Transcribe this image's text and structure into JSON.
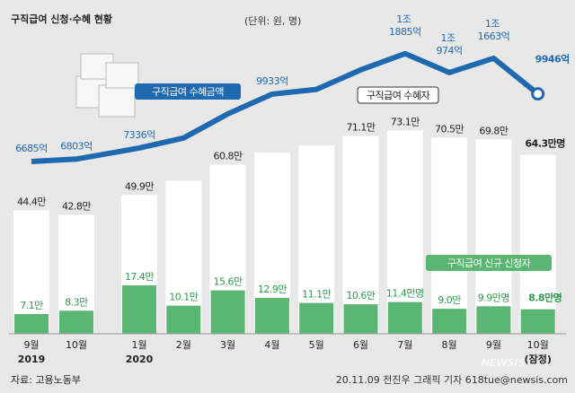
{
  "chart_data": {
    "type": "bar",
    "title": "구직급여 신청·수혜 현황",
    "subtitle": "(단위: 원, 명)",
    "categories": [
      "9월",
      "10월",
      "1월",
      "2월",
      "3월",
      "4월",
      "5월",
      "6월",
      "7월",
      "8월",
      "9월",
      "10월"
    ],
    "x_sublabels": [
      "2019",
      null,
      "2020",
      null,
      null,
      null,
      null,
      null,
      null,
      null,
      null,
      "(잠정)"
    ],
    "ylim": [
      0,
      80
    ],
    "y2lim": [
      5000,
      13000
    ],
    "series": [
      {
        "name": "구직급여 수혜자",
        "color": "#ffffff",
        "values": [
          44.4,
          42.8,
          49.9,
          55,
          60.8,
          65.1,
          67.8,
          71.1,
          73.1,
          70.5,
          69.8,
          64.3
        ],
        "value_labels": [
          "44.4만",
          "42.8만",
          "49.9만",
          null,
          "60.8만",
          null,
          null,
          "71.1만",
          "73.1만",
          "70.5만",
          "69.8만",
          "64.3만명"
        ]
      },
      {
        "name": "구직급여 신규 신청자",
        "color": "#5cb673",
        "values": [
          7.1,
          8.3,
          17.4,
          10.1,
          15.6,
          12.9,
          11.1,
          10.6,
          11.4,
          9.0,
          9.9,
          8.8
        ],
        "value_labels": [
          "7.1만",
          "8.3만",
          "17.4만",
          "10.1만",
          "15.6만",
          "12.9만",
          "11.1만",
          "10.6만",
          "11.4만명",
          "9.0만",
          "9.9만명",
          "8.8만명"
        ]
      },
      {
        "name": "구직급여 수혜금액",
        "type": "line",
        "axis": "y2",
        "color": "#1f69b1",
        "values": [
          6685,
          6803,
          7336,
          7819,
          8982,
          9933,
          10162,
          11103,
          11885,
          10974,
          11663,
          9946
        ],
        "value_labels": [
          "6685억",
          "6803억",
          "7336억",
          null,
          null,
          "9933억",
          null,
          null,
          "1조 1885억",
          "1조 974억",
          "1조 1663억",
          "9946억"
        ]
      }
    ],
    "source": "자료: 고용노동부",
    "credit": "20.11.09 전진우 그래픽 기자 618tue@newsis.com",
    "watermark": "NEWSIS"
  }
}
